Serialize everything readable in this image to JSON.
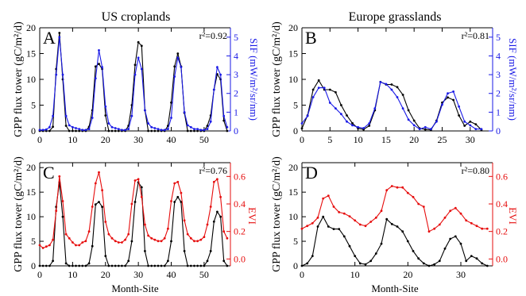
{
  "figure": {
    "col_titles": [
      "US croplands",
      "Europe grasslands"
    ],
    "gpp_label": "GPP flux tower (gC/m²/d)",
    "sif_label": "SIF (mW/m²/sr/nm)",
    "evi_label": "EVI",
    "xlabel": "Month-Site",
    "colors": {
      "gpp": "#000000",
      "sif": "#1a1ae6",
      "evi": "#e60d0d"
    }
  },
  "chart_data": [
    {
      "type": "line",
      "panel": "A",
      "r2": "r²=0.92",
      "xlim": [
        0,
        58
      ],
      "ylim_left": [
        0,
        20
      ],
      "ylim_right": [
        0,
        5.5
      ],
      "xticks": [
        0,
        10,
        20,
        30,
        40,
        50
      ],
      "yticks_left": [
        0,
        5,
        10,
        15,
        20
      ],
      "yticks_right": [
        0,
        1,
        2,
        3,
        4,
        5
      ],
      "series": [
        {
          "axis": "left",
          "x": [
            0,
            1,
            2,
            3,
            4,
            5,
            6,
            7,
            8,
            9,
            10,
            11,
            12,
            13,
            14,
            15,
            16,
            17,
            18,
            19,
            20,
            21,
            22,
            23,
            24,
            25,
            26,
            27,
            28,
            29,
            30,
            31,
            32,
            33,
            34,
            35,
            36,
            37,
            38,
            39,
            40,
            41,
            42,
            43,
            44,
            45,
            46,
            47,
            48,
            49,
            50,
            51,
            52,
            53,
            54,
            55,
            56,
            57
          ],
          "y": [
            0,
            0,
            0,
            0,
            0.8,
            12,
            19,
            10,
            1,
            0,
            0,
            0,
            0,
            0,
            0,
            0.8,
            4,
            12.5,
            13,
            12,
            3,
            0,
            0,
            0,
            0,
            0,
            0,
            1,
            5,
            12.8,
            17.2,
            16.5,
            4,
            0,
            0,
            0,
            0,
            0,
            0,
            1,
            5.5,
            12.5,
            15,
            12.5,
            3.5,
            0,
            0,
            0,
            0,
            0,
            0,
            1,
            3,
            8,
            11,
            10,
            2,
            0
          ]
        },
        {
          "axis": "right",
          "x": [
            0,
            1,
            2,
            3,
            4,
            5,
            6,
            7,
            8,
            9,
            10,
            11,
            12,
            13,
            14,
            15,
            16,
            17,
            18,
            19,
            20,
            21,
            22,
            23,
            24,
            25,
            26,
            27,
            28,
            29,
            30,
            31,
            32,
            33,
            34,
            35,
            36,
            37,
            38,
            39,
            40,
            41,
            42,
            43,
            44,
            45,
            46,
            47,
            48,
            49,
            50,
            51,
            52,
            53,
            54,
            55,
            56,
            57
          ],
          "y": [
            0.05,
            0.05,
            0.08,
            0.2,
            0.8,
            3,
            5,
            3,
            0.8,
            0.3,
            0.2,
            0.15,
            0.1,
            0.05,
            0.05,
            0.1,
            0.7,
            2.8,
            4.3,
            3.4,
            1.3,
            0.4,
            0.2,
            0.15,
            0.1,
            0.05,
            0.05,
            0.1,
            0.8,
            3,
            3.9,
            3.3,
            1.1,
            0.4,
            0.2,
            0.15,
            0.1,
            0.05,
            0.05,
            0.1,
            0.7,
            2.9,
            3.9,
            3.4,
            1,
            0.3,
            0.2,
            0.1,
            0.1,
            0.05,
            0.05,
            0.1,
            0.5,
            2.2,
            3.4,
            3,
            0.8,
            0.2
          ]
        }
      ]
    },
    {
      "type": "line",
      "panel": "B",
      "r2": "r²=0.81",
      "xlim": [
        0,
        34
      ],
      "ylim_left": [
        0,
        20
      ],
      "ylim_right": [
        0,
        5.5
      ],
      "xticks": [
        0,
        5,
        10,
        15,
        20,
        25,
        30
      ],
      "yticks_left": [
        0,
        5,
        10,
        15,
        20
      ],
      "yticks_right": [
        0,
        1,
        2,
        3,
        4,
        5
      ],
      "series": [
        {
          "axis": "left",
          "x": [
            0,
            1,
            2,
            3,
            4,
            5,
            6,
            7,
            8,
            9,
            10,
            11,
            12,
            13,
            14,
            15,
            16,
            17,
            18,
            19,
            20,
            21,
            22,
            23,
            24,
            25,
            26,
            27,
            28,
            29,
            30,
            31,
            32
          ],
          "y": [
            0.5,
            3,
            8,
            9.8,
            8,
            8,
            7.5,
            5,
            3,
            1.5,
            0.5,
            0.3,
            1,
            4,
            9.5,
            9,
            9,
            8.5,
            7,
            4,
            2,
            0.5,
            0.3,
            0.2,
            2,
            5.5,
            6.5,
            6,
            3,
            1,
            1.8,
            1.3,
            0.2
          ]
        },
        {
          "axis": "right",
          "x": [
            0,
            1,
            2,
            3,
            4,
            5,
            6,
            7,
            8,
            9,
            10,
            11,
            12,
            13,
            14,
            15,
            16,
            17,
            18,
            19,
            20,
            21,
            22,
            23,
            24,
            25,
            26,
            27,
            28,
            29,
            30,
            31,
            32
          ],
          "y": [
            0.4,
            0.8,
            1.8,
            2.3,
            2.3,
            1.5,
            1.2,
            0.9,
            0.5,
            0.3,
            0.2,
            0.15,
            0.4,
            1.2,
            2.6,
            2.5,
            2.2,
            1.8,
            1.2,
            0.6,
            0.3,
            0.1,
            0.2,
            0.1,
            0.5,
            1.4,
            2,
            2.1,
            1.3,
            0.5,
            0.3,
            0.1,
            0.1
          ]
        }
      ]
    },
    {
      "type": "line",
      "panel": "C",
      "r2": "r²=0.76",
      "xlim": [
        0,
        58
      ],
      "ylim_left": [
        0,
        21
      ],
      "ylim_right": [
        -0.05,
        0.7
      ],
      "xticks": [
        0,
        10,
        20,
        30,
        40,
        50
      ],
      "yticks_left": [
        0,
        5,
        10,
        15,
        20
      ],
      "yticks_right": [
        0.0,
        0.2,
        0.4,
        0.6
      ],
      "series": [
        {
          "axis": "left",
          "x": [
            0,
            1,
            2,
            3,
            4,
            5,
            6,
            7,
            8,
            9,
            10,
            11,
            12,
            13,
            14,
            15,
            16,
            17,
            18,
            19,
            20,
            21,
            22,
            23,
            24,
            25,
            26,
            27,
            28,
            29,
            30,
            31,
            32,
            33,
            34,
            35,
            36,
            37,
            38,
            39,
            40,
            41,
            42,
            43,
            44,
            45,
            46,
            47,
            48,
            49,
            50,
            51,
            52,
            53,
            54,
            55,
            56,
            57
          ],
          "y": [
            0,
            0,
            0,
            0,
            1,
            12,
            17,
            10,
            0.5,
            0,
            0,
            0,
            0,
            0,
            0,
            0.5,
            4,
            12.5,
            13,
            12,
            2,
            0,
            0,
            0,
            0,
            0,
            0,
            1,
            5,
            13,
            17,
            16,
            3,
            0,
            0,
            0,
            0,
            0,
            0,
            1,
            5,
            13,
            14,
            13,
            3,
            0,
            0,
            0,
            0,
            0,
            0,
            1,
            3,
            9,
            11,
            10,
            1,
            0
          ]
        },
        {
          "axis": "right",
          "x": [
            0,
            1,
            2,
            3,
            4,
            5,
            6,
            7,
            8,
            9,
            10,
            11,
            12,
            13,
            14,
            15,
            16,
            17,
            18,
            19,
            20,
            21,
            22,
            23,
            24,
            25,
            26,
            27,
            28,
            29,
            30,
            31,
            32,
            33,
            34,
            35,
            36,
            37,
            38,
            39,
            40,
            41,
            42,
            43,
            44,
            45,
            46,
            47,
            48,
            49,
            50,
            51,
            52,
            53,
            54,
            55,
            56,
            57
          ],
          "y": [
            0.1,
            0.08,
            0.09,
            0.1,
            0.14,
            0.35,
            0.6,
            0.42,
            0.18,
            0.15,
            0.12,
            0.1,
            0.1,
            0.12,
            0.13,
            0.2,
            0.38,
            0.55,
            0.63,
            0.5,
            0.27,
            0.18,
            0.15,
            0.13,
            0.12,
            0.12,
            0.14,
            0.18,
            0.4,
            0.57,
            0.58,
            0.45,
            0.25,
            0.17,
            0.15,
            0.14,
            0.13,
            0.13,
            0.15,
            0.22,
            0.42,
            0.55,
            0.56,
            0.48,
            0.28,
            0.18,
            0.15,
            0.13,
            0.13,
            0.14,
            0.16,
            0.25,
            0.38,
            0.56,
            0.58,
            0.45,
            0.2,
            0.15
          ]
        }
      ]
    },
    {
      "type": "line",
      "panel": "D",
      "r2": "r²=0.80",
      "xlim": [
        0,
        36
      ],
      "ylim_left": [
        0,
        21
      ],
      "ylim_right": [
        -0.05,
        0.7
      ],
      "xticks": [
        0,
        10,
        20,
        30
      ],
      "yticks_left": [
        0,
        5,
        10,
        15,
        20
      ],
      "yticks_right": [
        0.0,
        0.2,
        0.4,
        0.6
      ],
      "series": [
        {
          "axis": "left",
          "x": [
            0,
            1,
            2,
            3,
            4,
            5,
            6,
            7,
            8,
            9,
            10,
            11,
            12,
            13,
            14,
            15,
            16,
            17,
            18,
            19,
            20,
            21,
            22,
            23,
            24,
            25,
            26,
            27,
            28,
            29,
            30,
            31,
            32,
            33,
            34,
            35
          ],
          "y": [
            0,
            0.5,
            2,
            8,
            10,
            8,
            7.5,
            7.5,
            6,
            4,
            2,
            0.5,
            0.3,
            1,
            2.5,
            4.5,
            9.5,
            8.5,
            8,
            7,
            5,
            3,
            1.5,
            0.5,
            0,
            0.3,
            1,
            3.5,
            5.5,
            6,
            4.5,
            1,
            2,
            1.5,
            0.5,
            0
          ]
        },
        {
          "axis": "right",
          "x": [
            0,
            1,
            2,
            3,
            4,
            5,
            6,
            7,
            8,
            9,
            10,
            11,
            12,
            13,
            14,
            15,
            16,
            17,
            18,
            19,
            20,
            21,
            22,
            23,
            24,
            25,
            26,
            27,
            28,
            29,
            30,
            31,
            32,
            33,
            34,
            35
          ],
          "y": [
            0.22,
            0.24,
            0.26,
            0.3,
            0.44,
            0.46,
            0.38,
            0.34,
            0.33,
            0.31,
            0.28,
            0.25,
            0.24,
            0.27,
            0.3,
            0.35,
            0.5,
            0.53,
            0.52,
            0.52,
            0.48,
            0.45,
            0.4,
            0.38,
            0.2,
            0.22,
            0.25,
            0.3,
            0.35,
            0.37,
            0.33,
            0.28,
            0.26,
            0.24,
            0.22,
            0.22
          ]
        }
      ]
    }
  ]
}
